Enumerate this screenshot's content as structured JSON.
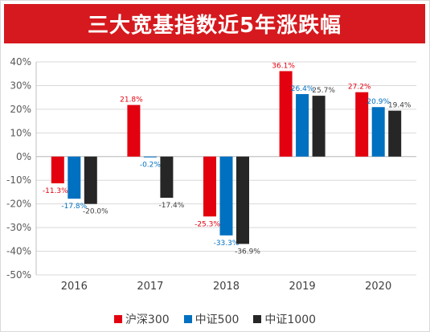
{
  "colors": {
    "banner": "#d5191e",
    "grid": "#d9d9d9",
    "axis": "#bfbfbf",
    "tick_text": "#595959"
  },
  "chart_data": {
    "type": "bar",
    "title": "三大宽基指数近5年涨跌幅",
    "categories": [
      "2016",
      "2017",
      "2018",
      "2019",
      "2020"
    ],
    "series": [
      {
        "name": "沪深300",
        "color": "#e3000f",
        "label_color": "#e3000f",
        "values": [
          -11.3,
          21.8,
          -25.3,
          36.1,
          27.2
        ],
        "labels": [
          "-11.3%",
          "21.8%",
          "-25.3%",
          "36.1%",
          "27.2%"
        ]
      },
      {
        "name": "中证500",
        "color": "#0070c0",
        "label_color": "#0070c0",
        "values": [
          -17.8,
          -0.2,
          -33.3,
          26.4,
          20.9
        ],
        "labels": [
          "-17.8%",
          "-0.2%",
          "-33.3%",
          "26.4%",
          "20.9%"
        ]
      },
      {
        "name": "中证1000",
        "color": "#262626",
        "label_color": "#404040",
        "values": [
          -20.0,
          -17.4,
          -36.9,
          25.7,
          19.4
        ],
        "labels": [
          "-20.0%",
          "-17.4%",
          "-36.9%",
          "25.7%",
          "19.4%"
        ]
      }
    ],
    "ylim": [
      -50,
      40
    ],
    "yticks": [
      40,
      30,
      20,
      10,
      0,
      -10,
      -20,
      -30,
      -40,
      -50
    ],
    "ytick_labels": [
      "40%",
      "30%",
      "20%",
      "10%",
      "0%",
      "-10%",
      "-20%",
      "-30%",
      "-40%",
      "-50%"
    ],
    "grid": true,
    "legend_position": "bottom"
  }
}
